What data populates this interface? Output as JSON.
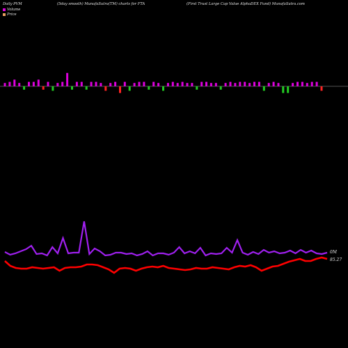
{
  "header": {
    "left": "Daily PVM",
    "mid1": "(5day smooth) MunafaSutra(TM) charts for FTA",
    "right": "(First Trust Large  Cap Value  AlphaDEX  Fund) MunafaSutra.com"
  },
  "legend": {
    "volume_label": "Volume",
    "price_label": "Price"
  },
  "colors": {
    "volume_up": "#dd00dd",
    "volume_down_red": "#ff2222",
    "volume_green": "#22cc22",
    "price_line": "#ff0000",
    "volume_line": "#a020f0",
    "background": "#000000"
  },
  "chart_data": {
    "type": "bar",
    "title": "",
    "volume_bars": [
      3,
      4,
      6,
      3,
      -3,
      4,
      4,
      6,
      -3,
      4,
      -4,
      3,
      4,
      12,
      -3,
      4,
      4,
      -3,
      4,
      4,
      3,
      -4,
      3,
      4,
      -6,
      4,
      -4,
      3,
      4,
      4,
      -3,
      4,
      3,
      -4,
      3,
      4,
      3,
      4,
      3,
      3,
      -3,
      4,
      4,
      3,
      3,
      -3,
      3,
      4,
      3,
      4,
      4,
      3,
      4,
      4,
      -4,
      3,
      4,
      3,
      -6,
      -6,
      3,
      4,
      4,
      3,
      4,
      4,
      -4
    ],
    "volume_bar_colors": [
      "m",
      "m",
      "m",
      "m",
      "g",
      "m",
      "m",
      "m",
      "r",
      "m",
      "g",
      "m",
      "m",
      "m",
      "g",
      "m",
      "m",
      "g",
      "m",
      "m",
      "m",
      "r",
      "m",
      "m",
      "r",
      "m",
      "g",
      "m",
      "m",
      "m",
      "g",
      "m",
      "m",
      "g",
      "m",
      "m",
      "m",
      "m",
      "m",
      "m",
      "g",
      "m",
      "m",
      "m",
      "m",
      "g",
      "m",
      "m",
      "m",
      "m",
      "m",
      "m",
      "m",
      "m",
      "g",
      "m",
      "m",
      "m",
      "g",
      "g",
      "m",
      "m",
      "m",
      "m",
      "m",
      "m",
      "r"
    ],
    "volume_line": [
      362,
      366,
      364,
      361,
      358,
      353,
      365,
      364,
      367,
      355,
      364,
      342,
      364,
      363,
      363,
      318,
      365,
      357,
      361,
      367,
      366,
      363,
      363,
      365,
      364,
      367,
      365,
      361,
      367,
      364,
      364,
      366,
      363,
      355,
      364,
      361,
      364,
      356,
      367,
      364,
      365,
      364,
      356,
      363,
      345,
      363,
      366,
      362,
      365,
      359,
      363,
      361,
      364,
      363,
      360,
      364,
      359,
      363,
      360,
      364,
      365,
      363
    ],
    "price_line": [
      375,
      382,
      385,
      386,
      386,
      384,
      385,
      386,
      385,
      384,
      389,
      385,
      384,
      384,
      383,
      380,
      380,
      381,
      384,
      387,
      392,
      386,
      385,
      386,
      389,
      386,
      384,
      383,
      384,
      382,
      385,
      386,
      387,
      388,
      387,
      385,
      386,
      386,
      384,
      385,
      386,
      387,
      384,
      382,
      383,
      381,
      384,
      389,
      386,
      383,
      382,
      379,
      376,
      374,
      372,
      375,
      375,
      372,
      370,
      372
    ],
    "price_axis_label": "85.27",
    "volume_axis_label": "0M"
  }
}
